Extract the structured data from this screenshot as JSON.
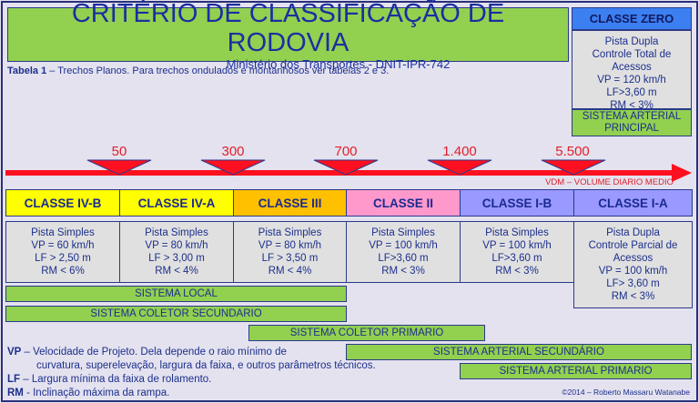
{
  "title": "CRITÉRIO DE CLASSIFICAÇÃO DE RODOVIA",
  "subtitle": "Ministério dos Transportes  - DNIT-IPR-742",
  "tabela": {
    "label": "Tabela 1",
    "text": " – Trechos Planos. Para trechos ondulados e montanhosos ver tabelas 2 e 3."
  },
  "classe_zero": {
    "header": "CLASSE ZERO",
    "specs": [
      "Pista Dupla",
      "Controle Total de",
      "Acessos",
      "VP = 120 km/h",
      "LF>3,60 m",
      "RM < 3%"
    ],
    "system": "SISTEMA ARTERIAL PRINCIPAL"
  },
  "vdm": {
    "thresholds": [
      "50",
      "300",
      "700",
      "1.400",
      "5.500"
    ],
    "label": "VDM – VOLUME DIARIO MEDIO",
    "color": "#e0202a"
  },
  "classes": [
    {
      "name": "CLASSE IV-B",
      "color": "#ffff00",
      "specs": [
        "Pista Simples",
        "VP = 60 km/h",
        "LF > 2,50 m",
        "RM < 6%"
      ]
    },
    {
      "name": "CLASSE IV-A",
      "color": "#ffff00",
      "specs": [
        "Pista Simples",
        "VP = 80 km/h",
        "LF > 3,00 m",
        "RM < 4%"
      ]
    },
    {
      "name": "CLASSE III",
      "color": "#ffc000",
      "specs": [
        "Pista Simples",
        "VP = 80 km/h",
        "LF > 3,50 m",
        "RM < 4%"
      ]
    },
    {
      "name": "CLASSE II",
      "color": "#ff99cc",
      "specs": [
        "Pista Simples",
        "VP = 100 km/h",
        "LF>3,60 m",
        "RM < 3%"
      ]
    },
    {
      "name": "CLASSE I-B",
      "color": "#9999ff",
      "specs": [
        "Pista Simples",
        "VP = 100 km/h",
        "LF>3,60 m",
        "RM < 3%"
      ]
    },
    {
      "name": "CLASSE I-A",
      "color": "#9999ff",
      "specs": [
        "Pista Dupla",
        "Controle Parcial de",
        "Acessos",
        "VP = 100 km/h",
        "LF> 3,60 m",
        "RM < 3%"
      ]
    }
  ],
  "systems": [
    "SISTEMA LOCAL",
    "SISTEMA COLETOR SECUNDARIO",
    "SISTEMA COLETOR PRIMARIO",
    "SISTEMA ARTERIAL  SECUNDÁRIO",
    "SISTEMA ARTERIAL  PRIMARIO"
  ],
  "legend": {
    "vp_key": "VP",
    "vp_text": " – Velocidade de Projeto. Dela depende o raio mínimo de",
    "vp_text2": "curvatura, superelevação, largura da faixa,  e outros parâmetros técnicos.",
    "lf_key": "LF",
    "lf_text": " – Largura mínima da faixa de rolamento.",
    "rm_key": "RM",
    "rm_text": " - Inclinação máxima da rampa."
  },
  "copyright": "©2014 – Roberto Massaru Watanabe"
}
